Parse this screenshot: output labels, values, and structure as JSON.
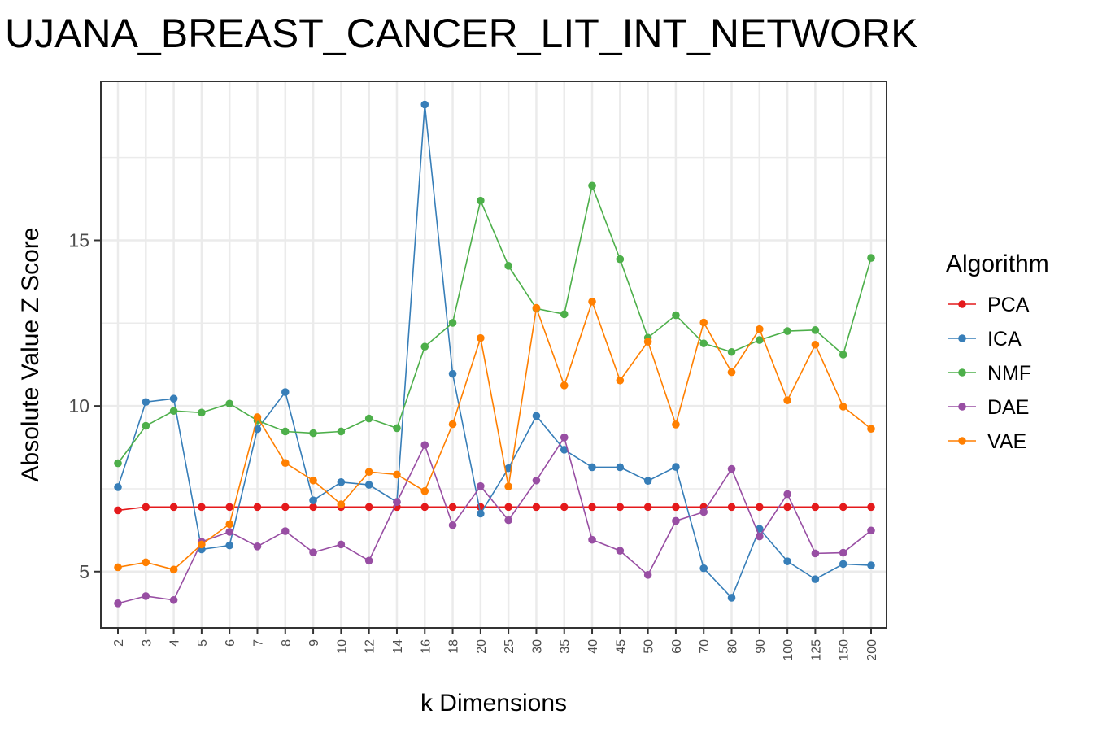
{
  "chart_data": {
    "type": "line",
    "title": "UJANA_BREAST_CANCER_LIT_INT_NETWORK",
    "xlabel": "k Dimensions",
    "ylabel": "Absolute Value Z Score",
    "categories": [
      "2",
      "3",
      "4",
      "5",
      "6",
      "7",
      "8",
      "9",
      "10",
      "12",
      "14",
      "16",
      "18",
      "20",
      "25",
      "30",
      "35",
      "40",
      "45",
      "50",
      "60",
      "70",
      "80",
      "90",
      "100",
      "125",
      "150",
      "200"
    ],
    "yticks": [
      5,
      10,
      15
    ],
    "ylim": [
      3.3,
      19.8
    ],
    "grid": true,
    "legend": {
      "title": "Algorithm",
      "position": "right"
    },
    "series": [
      {
        "name": "PCA",
        "color": "#e41a1c",
        "values": [
          6.85,
          6.95,
          6.95,
          6.95,
          6.95,
          6.95,
          6.95,
          6.95,
          6.95,
          6.95,
          6.95,
          6.95,
          6.95,
          6.95,
          6.95,
          6.95,
          6.95,
          6.95,
          6.95,
          6.95,
          6.95,
          6.95,
          6.95,
          6.95,
          6.95,
          6.95,
          6.95,
          6.95
        ]
      },
      {
        "name": "ICA",
        "color": "#377eb8",
        "values": [
          7.55,
          10.12,
          10.22,
          5.67,
          5.79,
          9.3,
          10.42,
          7.15,
          7.7,
          7.62,
          7.1,
          19.1,
          10.97,
          6.75,
          8.12,
          9.7,
          8.68,
          8.15,
          8.15,
          7.74,
          8.16,
          5.1,
          4.21,
          6.29,
          5.31,
          4.77,
          5.23,
          5.19
        ]
      },
      {
        "name": "NMF",
        "color": "#4daf4a",
        "values": [
          8.27,
          9.4,
          9.85,
          9.8,
          10.07,
          9.56,
          9.23,
          9.18,
          9.23,
          9.62,
          9.33,
          11.79,
          12.51,
          16.2,
          14.23,
          12.94,
          12.77,
          16.65,
          14.43,
          12.06,
          12.74,
          11.89,
          11.63,
          11.99,
          12.26,
          12.29,
          11.55,
          14.47
        ]
      },
      {
        "name": "DAE",
        "color": "#984ea3",
        "values": [
          4.04,
          4.26,
          4.14,
          5.9,
          6.2,
          5.76,
          6.22,
          5.58,
          5.82,
          5.33,
          7.1,
          8.82,
          6.4,
          7.58,
          6.55,
          7.75,
          9.05,
          5.96,
          5.63,
          4.9,
          6.53,
          6.8,
          8.1,
          6.06,
          7.34,
          5.55,
          5.57,
          6.24
        ]
      },
      {
        "name": "VAE",
        "color": "#ff7f00",
        "values": [
          5.13,
          5.28,
          5.06,
          5.82,
          6.43,
          9.66,
          8.28,
          7.75,
          7.03,
          8.01,
          7.93,
          7.43,
          9.45,
          12.05,
          7.57,
          12.96,
          10.62,
          13.15,
          10.77,
          11.94,
          9.44,
          12.52,
          11.02,
          12.32,
          10.17,
          11.85,
          9.98,
          9.31
        ]
      }
    ]
  }
}
